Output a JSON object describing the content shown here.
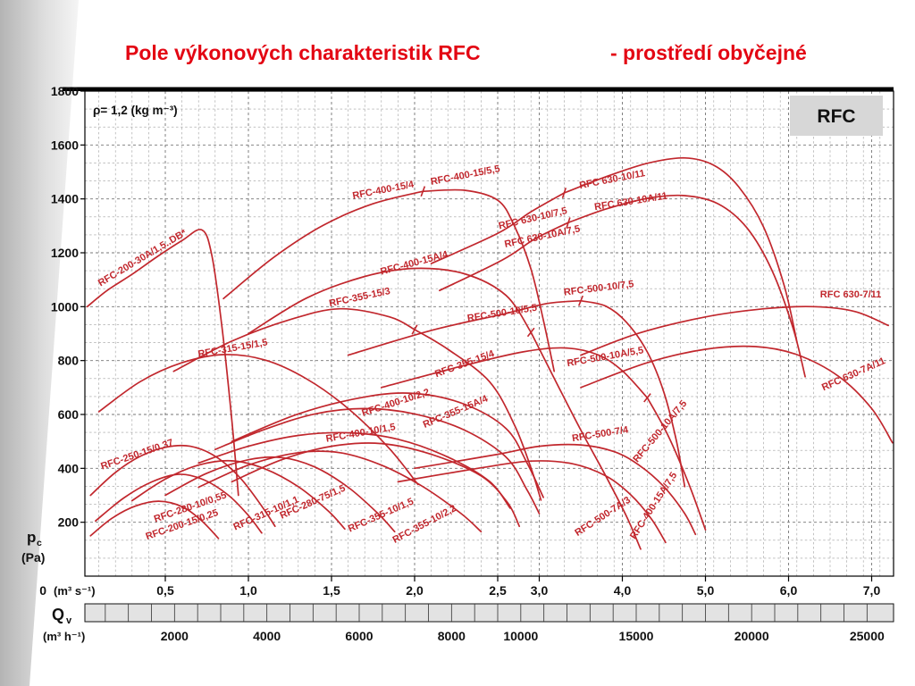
{
  "title": {
    "main": "Pole výkonových charakteristik RFC",
    "suffix": "- prostředí obyčejné"
  },
  "plot_notes": {
    "density": "ρ= 1,2 (kg m⁻³)",
    "badge": "RFC"
  },
  "y_axis": {
    "quantity": "p",
    "quantity_sub": "c",
    "unit": "(Pa)",
    "zero": "0",
    "ticks": [
      "1800",
      "1600",
      "1400",
      "1200",
      "1000",
      "800",
      "600",
      "400",
      "200"
    ],
    "values": [
      1800,
      1600,
      1400,
      1200,
      1000,
      800,
      600,
      400,
      200
    ]
  },
  "x_axis_m3s": {
    "unit": "(m³ s⁻¹)",
    "ticks": [
      "0,5",
      "1,0",
      "1,5",
      "2,0",
      "2,5",
      "3,0",
      "4,0",
      "5,0",
      "6,0",
      "7,0"
    ],
    "values": [
      0.5,
      1.0,
      1.5,
      2.0,
      2.5,
      3.0,
      4.0,
      5.0,
      6.0,
      7.0
    ]
  },
  "x_axis_m3h": {
    "quantity": "Q",
    "quantity_sub": "v",
    "unit": "(m³ h⁻¹)",
    "ticks": [
      "2000",
      "4000",
      "6000",
      "8000",
      "10000",
      "15000",
      "20000",
      "25000"
    ],
    "values": [
      2000,
      4000,
      6000,
      8000,
      10000,
      15000,
      20000,
      25000
    ]
  },
  "chart_data": {
    "type": "line",
    "title": "Pole výkonových charakteristik RFC - prostředí obyčejné",
    "xlabel": "Qv (m³ s⁻¹)",
    "xlabel2": "Qv (m³ h⁻¹)",
    "ylabel": "pc (Pa)",
    "xlim": [
      0,
      7.25
    ],
    "ylim": [
      0,
      1800
    ],
    "x_scale_note": "piecewise linear x-axis: 0–2,5 m³/s drawn at twice the scale of 2,5–7 m³/s",
    "grid": "fine dashed grid on",
    "curve_color": "#c1272d",
    "curves": [
      {
        "name": "RFC-200-30A/1,5..DB*",
        "label_q": 0.11,
        "label_p": 1075,
        "label_angle": -31,
        "points": [
          [
            0.03,
            1000
          ],
          [
            0.15,
            1060
          ],
          [
            0.3,
            1120
          ],
          [
            0.45,
            1185
          ],
          [
            0.6,
            1245
          ],
          [
            0.72,
            1285
          ],
          [
            0.78,
            1190
          ],
          [
            0.84,
            930
          ],
          [
            0.9,
            580
          ],
          [
            0.94,
            300
          ]
        ]
      },
      {
        "name": "RFC-250-15/0,37",
        "label_q": 0.12,
        "label_p": 395,
        "label_angle": -19,
        "points": [
          [
            0.05,
            300
          ],
          [
            0.2,
            385
          ],
          [
            0.35,
            445
          ],
          [
            0.5,
            478
          ],
          [
            0.65,
            482
          ],
          [
            0.8,
            445
          ],
          [
            0.95,
            365
          ],
          [
            1.08,
            260
          ],
          [
            1.16,
            185
          ]
        ]
      },
      {
        "name": "RFC-200-15/0,25",
        "label_q": 0.39,
        "label_p": 135,
        "label_angle": -19,
        "points": [
          [
            0.05,
            150
          ],
          [
            0.18,
            215
          ],
          [
            0.32,
            260
          ],
          [
            0.46,
            278
          ],
          [
            0.6,
            258
          ],
          [
            0.72,
            205
          ],
          [
            0.82,
            140
          ]
        ]
      },
      {
        "name": "RFC-280-10/0,55",
        "label_q": 0.44,
        "label_p": 200,
        "label_angle": -19,
        "points": [
          [
            0.08,
            205
          ],
          [
            0.25,
            290
          ],
          [
            0.42,
            350
          ],
          [
            0.58,
            378
          ],
          [
            0.73,
            358
          ],
          [
            0.88,
            300
          ],
          [
            1.0,
            225
          ],
          [
            1.08,
            160
          ]
        ]
      },
      {
        "name": "RFC-315-10/1,1",
        "label_q": 0.92,
        "label_p": 170,
        "label_angle": -24,
        "points": [
          [
            0.3,
            280
          ],
          [
            0.5,
            360
          ],
          [
            0.7,
            412
          ],
          [
            0.9,
            428
          ],
          [
            1.1,
            398
          ],
          [
            1.3,
            332
          ],
          [
            1.48,
            242
          ],
          [
            1.58,
            175
          ]
        ]
      },
      {
        "name": "RFC-280-75/1,5",
        "label_q": 1.2,
        "label_p": 212,
        "label_angle": -24,
        "points": [
          [
            0.5,
            300
          ],
          [
            0.75,
            382
          ],
          [
            1.0,
            432
          ],
          [
            1.2,
            440
          ],
          [
            1.4,
            405
          ],
          [
            1.6,
            330
          ],
          [
            1.78,
            232
          ],
          [
            1.88,
            165
          ]
        ]
      },
      {
        "name": "RFC-355-10/1,5",
        "label_q": 1.61,
        "label_p": 163,
        "label_angle": -24,
        "points": [
          [
            0.7,
            330
          ],
          [
            1.0,
            412
          ],
          [
            1.3,
            458
          ],
          [
            1.55,
            458
          ],
          [
            1.8,
            412
          ],
          [
            2.05,
            332
          ],
          [
            2.28,
            232
          ],
          [
            2.4,
            165
          ]
        ]
      },
      {
        "name": "RFC-355-10/2,2",
        "label_q": 1.88,
        "label_p": 122,
        "label_angle": -28,
        "points": [
          [
            0.9,
            350
          ],
          [
            1.2,
            432
          ],
          [
            1.5,
            482
          ],
          [
            1.8,
            492
          ],
          [
            2.1,
            452
          ],
          [
            2.4,
            372
          ],
          [
            2.62,
            272
          ],
          [
            2.76,
            185
          ]
        ]
      },
      {
        "name": "RFC-400-10/1,5",
        "label_q": 1.47,
        "label_p": 498,
        "label_angle": -10,
        "points": [
          [
            0.7,
            420
          ],
          [
            1.0,
            482
          ],
          [
            1.3,
            522
          ],
          [
            1.6,
            532
          ],
          [
            1.9,
            508
          ],
          [
            2.2,
            442
          ],
          [
            2.45,
            352
          ],
          [
            2.65,
            252
          ]
        ]
      },
      {
        "name": "RFC-400-10/2,2",
        "label_q": 1.69,
        "label_p": 593,
        "label_angle": -18,
        "points": [
          [
            0.8,
            470
          ],
          [
            1.1,
            545
          ],
          [
            1.4,
            602
          ],
          [
            1.7,
            622
          ],
          [
            2.0,
            602
          ],
          [
            2.3,
            542
          ],
          [
            2.6,
            442
          ],
          [
            2.85,
            322
          ],
          [
            3.0,
            232
          ]
        ]
      },
      {
        "name": "RFC-355-15A/4",
        "label_q": 2.06,
        "label_p": 550,
        "label_angle": -23,
        "points": [
          [
            0.9,
            500
          ],
          [
            1.3,
            602
          ],
          [
            1.7,
            665
          ],
          [
            2.0,
            678
          ],
          [
            2.3,
            638
          ],
          [
            2.6,
            548
          ],
          [
            2.85,
            422
          ],
          [
            3.05,
            292
          ]
        ]
      },
      {
        "name": "RFC-315-15/1,5",
        "label_q": 0.7,
        "label_p": 812,
        "label_angle": -10,
        "points": [
          [
            0.1,
            610
          ],
          [
            0.35,
            722
          ],
          [
            0.6,
            792
          ],
          [
            0.85,
            822
          ],
          [
            1.1,
            802
          ],
          [
            1.35,
            732
          ],
          [
            1.6,
            622
          ],
          [
            1.85,
            472
          ],
          [
            2.02,
            340
          ]
        ]
      },
      {
        "name": "RFC-355-15/3",
        "label_q": 1.49,
        "label_p": 1000,
        "label_angle": -12,
        "points": [
          [
            0.55,
            760
          ],
          [
            0.9,
            872
          ],
          [
            1.25,
            952
          ],
          [
            1.55,
            992
          ],
          [
            1.85,
            962
          ],
          [
            2.0,
            915
          ]
        ]
      },
      {
        "name": "RFC-355-15/4",
        "label_q": 2.13,
        "label_p": 738,
        "label_angle": -20,
        "points": [
          [
            2.0,
            915
          ],
          [
            2.2,
            842
          ],
          [
            2.45,
            722
          ],
          [
            2.7,
            562
          ],
          [
            2.9,
            402
          ],
          [
            3.02,
            282
          ]
        ]
      },
      {
        "name": "RFC-400-15/4",
        "label_q": 1.63,
        "label_p": 1400,
        "label_angle": -11,
        "points": [
          [
            0.85,
            1030
          ],
          [
            1.15,
            1182
          ],
          [
            1.45,
            1302
          ],
          [
            1.75,
            1382
          ],
          [
            2.05,
            1428
          ]
        ]
      },
      {
        "name": "RFC-400-15/5,5",
        "label_q": 2.1,
        "label_p": 1452,
        "label_angle": -11,
        "points": [
          [
            2.05,
            1428
          ],
          [
            2.3,
            1432
          ],
          [
            2.5,
            1395
          ],
          [
            2.7,
            1300
          ],
          [
            2.9,
            1140
          ],
          [
            3.05,
            950
          ],
          [
            3.18,
            760
          ]
        ]
      },
      {
        "name": "RFC-400-15A/4",
        "label_q": 1.8,
        "label_p": 1118,
        "label_angle": -15,
        "points": [
          [
            1.0,
            900
          ],
          [
            1.35,
            1032
          ],
          [
            1.7,
            1112
          ],
          [
            2.0,
            1142
          ],
          [
            2.3,
            1122
          ],
          [
            2.6,
            1042
          ],
          [
            2.9,
            905
          ]
        ]
      },
      {
        "name": "RFC-400-15A/7,5",
        "label_q": 4.15,
        "label_p": 135,
        "label_angle": -57,
        "points": [
          [
            2.9,
            905
          ],
          [
            3.2,
            722
          ],
          [
            3.5,
            542
          ],
          [
            3.8,
            372
          ],
          [
            4.05,
            222
          ],
          [
            4.22,
            100
          ]
        ]
      },
      {
        "name": "RFC-500-10/5,5",
        "label_q": 2.32,
        "label_p": 945,
        "label_angle": -9,
        "points": [
          [
            1.6,
            820
          ],
          [
            2.1,
            912
          ],
          [
            2.6,
            975
          ],
          [
            3.1,
            1012
          ],
          [
            3.5,
            1022
          ]
        ]
      },
      {
        "name": "RFC-500-10/7,5",
        "label_q": 3.3,
        "label_p": 1042,
        "label_angle": -7,
        "points": [
          [
            3.5,
            1022
          ],
          [
            3.8,
            1002
          ],
          [
            4.05,
            942
          ],
          [
            4.3,
            832
          ],
          [
            4.5,
            682
          ],
          [
            4.65,
            502
          ],
          [
            4.75,
            332
          ]
        ]
      },
      {
        "name": "RFC-500-10A/5,5",
        "label_q": 3.34,
        "label_p": 778,
        "label_angle": -10,
        "points": [
          [
            1.8,
            700
          ],
          [
            2.3,
            782
          ],
          [
            2.8,
            832
          ],
          [
            3.3,
            847
          ],
          [
            3.7,
            822
          ],
          [
            4.0,
            762
          ],
          [
            4.3,
            662
          ]
        ]
      },
      {
        "name": "RFC-500-10A/7,5",
        "label_q": 4.18,
        "label_p": 420,
        "label_angle": -50,
        "points": [
          [
            4.3,
            662
          ],
          [
            4.55,
            522
          ],
          [
            4.8,
            342
          ],
          [
            5.0,
            172
          ]
        ]
      },
      {
        "name": "RFC-500-7/4",
        "label_q": 3.4,
        "label_p": 500,
        "label_angle": -9,
        "points": [
          [
            2.0,
            400
          ],
          [
            2.5,
            452
          ],
          [
            3.0,
            482
          ],
          [
            3.5,
            487
          ],
          [
            3.9,
            462
          ],
          [
            4.2,
            412
          ],
          [
            4.5,
            332
          ],
          [
            4.75,
            232
          ],
          [
            4.88,
            155
          ]
        ]
      },
      {
        "name": "RFC-500-7A/3",
        "label_q": 3.46,
        "label_p": 148,
        "label_angle": -33,
        "points": [
          [
            1.9,
            350
          ],
          [
            2.4,
            402
          ],
          [
            2.9,
            427
          ],
          [
            3.4,
            417
          ],
          [
            3.8,
            372
          ],
          [
            4.1,
            302
          ],
          [
            4.35,
            212
          ],
          [
            4.52,
            125
          ]
        ]
      },
      {
        "name": "RFC 630-10/7,5",
        "label_q": 2.52,
        "label_p": 1288,
        "label_angle": -13,
        "points": [
          [
            2.1,
            1160
          ],
          [
            2.5,
            1272
          ],
          [
            2.9,
            1352
          ],
          [
            3.3,
            1422
          ]
        ]
      },
      {
        "name": "RFC 630-10/11",
        "label_q": 3.49,
        "label_p": 1438,
        "label_angle": -11,
        "points": [
          [
            3.3,
            1422
          ],
          [
            3.8,
            1482
          ],
          [
            4.3,
            1532
          ],
          [
            4.75,
            1552
          ],
          [
            5.1,
            1525
          ],
          [
            5.4,
            1445
          ],
          [
            5.7,
            1295
          ],
          [
            5.95,
            1075
          ],
          [
            6.1,
            870
          ]
        ]
      },
      {
        "name": "RFC 630-10A/7,5",
        "label_q": 2.59,
        "label_p": 1220,
        "label_angle": -12,
        "points": [
          [
            2.15,
            1060
          ],
          [
            2.55,
            1172
          ],
          [
            2.95,
            1252
          ],
          [
            3.35,
            1312
          ]
        ]
      },
      {
        "name": "RFC 630-10A/11",
        "label_q": 3.67,
        "label_p": 1358,
        "label_angle": -9,
        "points": [
          [
            3.35,
            1312
          ],
          [
            3.8,
            1362
          ],
          [
            4.3,
            1402
          ],
          [
            4.75,
            1412
          ],
          [
            5.15,
            1382
          ],
          [
            5.5,
            1292
          ],
          [
            5.8,
            1135
          ],
          [
            6.05,
            925
          ],
          [
            6.2,
            740
          ]
        ]
      },
      {
        "name": "RFC 630-7/11",
        "label_q": 6.38,
        "label_p": 1035,
        "label_angle": 0,
        "points": [
          [
            3.5,
            820
          ],
          [
            4.2,
            902
          ],
          [
            5.0,
            962
          ],
          [
            5.7,
            992
          ],
          [
            6.3,
            1000
          ],
          [
            6.8,
            982
          ],
          [
            7.2,
            930
          ]
        ]
      },
      {
        "name": "RFC 630-7A/11",
        "label_q": 6.42,
        "label_p": 688,
        "label_angle": -24,
        "points": [
          [
            3.5,
            700
          ],
          [
            4.3,
            792
          ],
          [
            5.0,
            842
          ],
          [
            5.6,
            852
          ],
          [
            6.1,
            822
          ],
          [
            6.6,
            742
          ],
          [
            7.0,
            622
          ],
          [
            7.25,
            495
          ]
        ]
      }
    ],
    "division_ticks": [
      [
        2.05,
        1428,
        70
      ],
      [
        2.0,
        915,
        62
      ],
      [
        3.3,
        1422,
        72
      ],
      [
        3.35,
        1312,
        72
      ],
      [
        3.5,
        1022,
        68
      ],
      [
        4.3,
        662,
        52
      ],
      [
        2.9,
        905,
        52
      ]
    ]
  }
}
